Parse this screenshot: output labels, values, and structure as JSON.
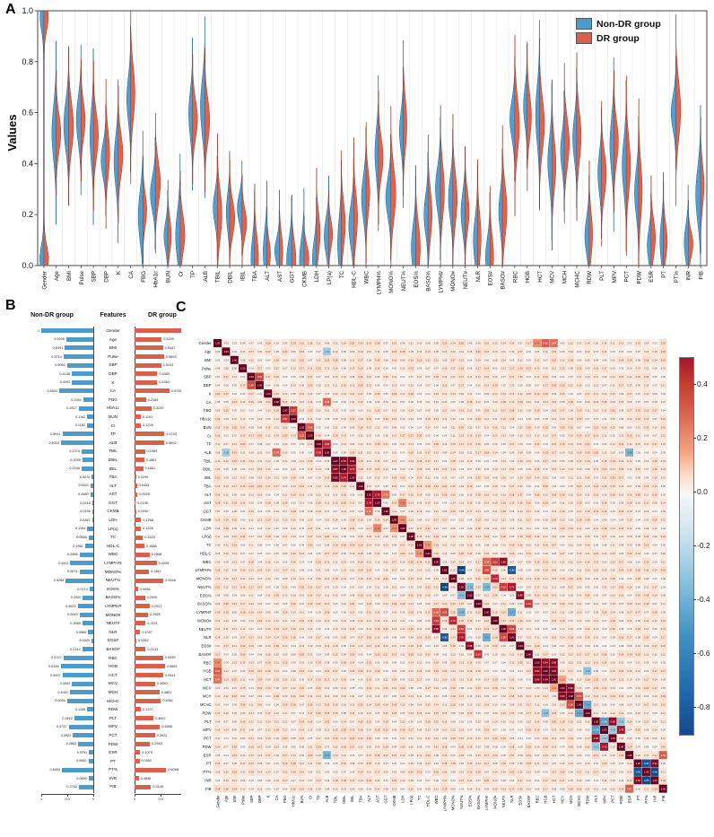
{
  "figure": {
    "panel_a_label": "A",
    "panel_b_label": "B",
    "panel_c_label": "C"
  },
  "colors": {
    "non_dr_fill": "#4D9BCB",
    "non_dr_edge": "#27648F",
    "dr_fill": "#D8604C",
    "dr_edge": "#9C3A28",
    "heat_max_red": "#67001F",
    "heat_min_blue": "#053061",
    "heat_mid": "#F7F7F7"
  },
  "panel_a": {
    "ylabel": "Values",
    "yticks": [
      "1.0",
      "0.8",
      "0.6",
      "0.4",
      "0.2",
      "0.0"
    ],
    "legend": [
      {
        "label": "Non-DR group"
      },
      {
        "label": "DR group"
      }
    ]
  },
  "panel_b": {
    "header_left": "Non-DR group",
    "header_center": "Features",
    "header_right": "DR group",
    "axis_ticks_left": [
      "1",
      "0.5",
      "0"
    ],
    "axis_ticks_right": [
      "0",
      "0.5",
      "1"
    ]
  },
  "panel_c": {
    "colorbar_ticks": [
      "0.4",
      "0.2",
      "0.0",
      "-0.2",
      "-0.4",
      "-0.6",
      "-0.8"
    ]
  },
  "features": [
    "Gender",
    "Age",
    "BMI",
    "Pulse",
    "SBP",
    "DBP",
    "K",
    "CA",
    "FBG",
    "HbA1c",
    "BUN",
    "Cr",
    "TP",
    "ALB",
    "TBIL",
    "DBIL",
    "IBIL",
    "TBA",
    "ALT",
    "AST",
    "GGT",
    "CKMB",
    "LDH",
    "LP(a)",
    "TC",
    "HDL-C",
    "WBC",
    "LYMPH%",
    "MONO%",
    "NEUT%",
    "EOS%",
    "BASO%",
    "LYMPH#",
    "MONO#",
    "NEUT#",
    "NLR",
    "EOS#",
    "BASO#",
    "RBC",
    "HGB",
    "HCT",
    "MCV",
    "MCH",
    "MCHC",
    "RDW",
    "PLT",
    "MPV",
    "PCT",
    "PDW",
    "ESR",
    "PT",
    "PT%",
    "INR",
    "FIB"
  ],
  "chart_data": [
    {
      "type": "violin",
      "panel": "A",
      "ylabel": "Values",
      "ylim": [
        0,
        1
      ],
      "yticks": [
        1.0,
        0.8,
        0.6,
        0.4,
        0.2,
        0.0
      ],
      "categories_key": "features",
      "grid": "vertical-category-separators",
      "legend_position": "upper right",
      "series": [
        {
          "name": "Non-DR group",
          "color": "#4D9BCB",
          "centers_key": "chart_data.1.series.0.values"
        },
        {
          "name": "DR group",
          "color": "#D8604C",
          "centers_key": "chart_data.1.series.1.values"
        }
      ]
    },
    {
      "type": "bar",
      "panel": "B",
      "orientation": "horizontal-mirrored",
      "xlim": [
        0,
        1
      ],
      "categories_key": "features",
      "series": [
        {
          "name": "Non-DR group",
          "color": "#4D9BCB",
          "values": [
            1,
            0.5205,
            0.5491,
            0.5714,
            0.506,
            0.4138,
            0.4092,
            0.6531,
            0.194,
            0.2817,
            0.1162,
            0.1182,
            0.5941,
            0.6215,
            0.2274,
            0.2095,
            0.2246,
            0.0276,
            0.0521,
            0.058,
            0.0215,
            0.0199,
            0.0261,
            0.1154,
            0.0866,
            0.1561,
            0.2656,
            0.4411,
            0.2674,
            0.5268,
            0.0714,
            0.2,
            0.302,
            0.2649,
            0.2089,
            0.0966,
            0.0329,
            0.2143,
            0.5747,
            0.626,
            0.5937,
            0.4062,
            0.4491,
            0.5,
            0.1166,
            0.3622,
            0.4737,
            0.3922,
            0.2863,
            0.0791,
            0.0952,
            0.6,
            0.089,
            0.2782
          ]
        },
        {
          "name": "DR group",
          "color": "#D8604C",
          "values": [
            1,
            0.5205,
            0.5447,
            0.5693,
            0.5103,
            0.4383,
            0.4352,
            0.6761,
            0.2184,
            0.3239,
            0.1191,
            0.1226,
            0.5743,
            0.5692,
            0.1989,
            0.1861,
            0.1661,
            0.0299,
            0.0443,
            0.0526,
            0.0198,
            0.029,
            0.1268,
            0.1228,
            0.1622,
            0.1888,
            0.2858,
            0.4235,
            0.2811,
            0.5546,
            0.0696,
            0.2,
            0.2922,
            0.2629,
            0.2121,
            0.1097,
            0.0352,
            0.2143,
            0.5495,
            0.5854,
            0.5541,
            0.395,
            0.4801,
            0.5061,
            0.1227,
            0.3602,
            0.4868,
            0.3922,
            0.2945,
            0.1079,
            0.0952,
            0.6098,
            0.0836,
            0.3148
          ]
        }
      ]
    },
    {
      "type": "heatmap",
      "panel": "C",
      "x_categories_key": "features",
      "y_categories_key": "features",
      "diagonal_value": 1,
      "vmin": -0.9,
      "vmax": 0.5,
      "colorbar_ticks": [
        0.4,
        0.2,
        0.0,
        -0.2,
        -0.4,
        -0.6,
        -0.8
      ],
      "colorbar_position": "right",
      "base_correlation_range": [
        0.03,
        0.2
      ],
      "notable_positive_pairs": [
        [
          "SBP",
          "DBP",
          0.58
        ],
        [
          "FBG",
          "HbA1c",
          0.62
        ],
        [
          "BUN",
          "Cr",
          0.52
        ],
        [
          "TP",
          "ALB",
          0.68
        ],
        [
          "TBIL",
          "DBIL",
          0.87
        ],
        [
          "TBIL",
          "IBIL",
          0.93
        ],
        [
          "DBIL",
          "IBIL",
          0.74
        ],
        [
          "ALT",
          "AST",
          0.78
        ],
        [
          "AST",
          "LDH",
          0.42
        ],
        [
          "ALT",
          "GGT",
          0.46
        ],
        [
          "CKMB",
          "LDH",
          0.4
        ],
        [
          "TC",
          "HDL-C",
          0.38
        ],
        [
          "CA",
          "ALB",
          0.48
        ],
        [
          "WBC",
          "NEUT#",
          0.86
        ],
        [
          "WBC",
          "MONO#",
          0.63
        ],
        [
          "WBC",
          "LYMPH#",
          0.48
        ],
        [
          "LYMPH%",
          "LYMPH#",
          0.56
        ],
        [
          "MONO%",
          "MONO#",
          0.7
        ],
        [
          "NEUT%",
          "NEUT#",
          0.62
        ],
        [
          "EOS%",
          "EOS#",
          0.88
        ],
        [
          "BASO%",
          "BASO#",
          0.64
        ],
        [
          "NEUT%",
          "NLR",
          0.76
        ],
        [
          "NEUT#",
          "NLR",
          0.58
        ],
        [
          "RBC",
          "HGB",
          0.84
        ],
        [
          "RBC",
          "HCT",
          0.88
        ],
        [
          "HGB",
          "HCT",
          0.94
        ],
        [
          "Gender",
          "HGB",
          0.5
        ],
        [
          "Gender",
          "HCT",
          0.46
        ],
        [
          "Gender",
          "RBC",
          0.4
        ],
        [
          "MCV",
          "MCH",
          0.9
        ],
        [
          "MCH",
          "MCHC",
          0.56
        ],
        [
          "MCV",
          "HCT",
          0.34
        ],
        [
          "PLT",
          "PCT",
          0.88
        ],
        [
          "MPV",
          "PDW",
          0.78
        ],
        [
          "PT",
          "INR",
          0.92
        ],
        [
          "ESR",
          "FIB",
          0.5
        ]
      ],
      "notable_negative_pairs": [
        [
          "LYMPH%",
          "NEUT%",
          -0.88
        ],
        [
          "LYMPH%",
          "NLR",
          -0.8
        ],
        [
          "LYMPH#",
          "NLR",
          -0.42
        ],
        [
          "NEUT%",
          "LYMPH#",
          -0.38
        ],
        [
          "EOS%",
          "NEUT%",
          -0.36
        ],
        [
          "PT",
          "PT%",
          -0.82
        ],
        [
          "INR",
          "PT%",
          -0.86
        ],
        [
          "PLT",
          "MPV",
          -0.48
        ],
        [
          "MCHC",
          "RDW",
          -0.44
        ],
        [
          "HGB",
          "RDW",
          -0.34
        ],
        [
          "ALB",
          "ESR",
          -0.4
        ],
        [
          "Age",
          "ALB",
          -0.3
        ],
        [
          "MPV",
          "PCT",
          -0.3
        ],
        [
          "PDW",
          "PLT",
          -0.32
        ]
      ]
    }
  ]
}
